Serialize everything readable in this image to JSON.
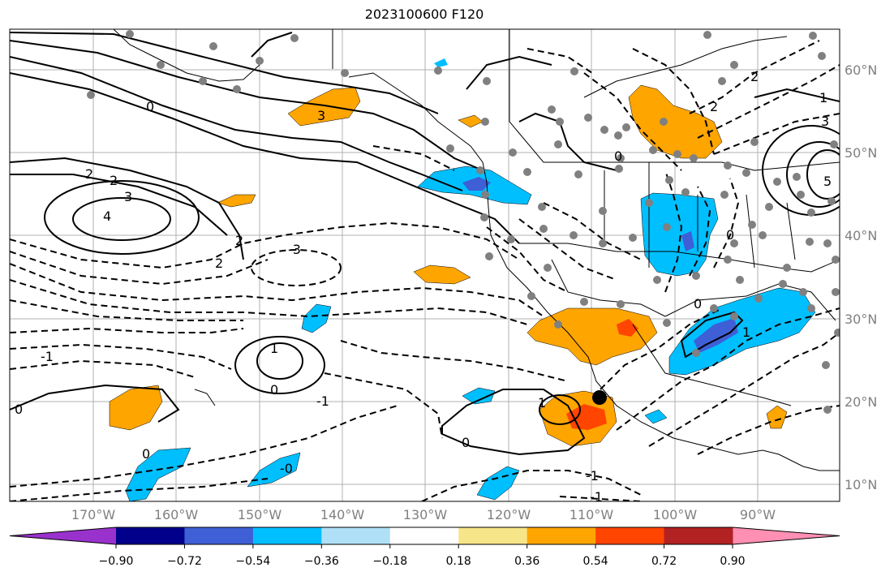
{
  "title": "2023100600 F120",
  "map": {
    "longitude_labels": [
      "170°W",
      "160°W",
      "150°W",
      "140°W",
      "130°W",
      "120°W",
      "110°W",
      "100°W",
      "90°W"
    ],
    "latitude_labels": [
      "60°N",
      "50°N",
      "40°N",
      "30°N",
      "20°N",
      "10°N"
    ],
    "contour_labels": [
      "2",
      "2",
      "3",
      "4",
      "3",
      "2",
      "2",
      "-3",
      "-1",
      "1",
      "0",
      "0",
      "-1",
      "0",
      "0",
      "1",
      "0",
      "-1",
      "0",
      "-0",
      "1",
      "0",
      "-1",
      "0",
      "2",
      "2",
      "3",
      "5",
      "1"
    ],
    "marker": "storm-center-dot"
  },
  "colorbar": {
    "tick_labels": [
      "−0.90",
      "−0.72",
      "−0.54",
      "−0.36",
      "−0.18",
      "0.18",
      "0.36",
      "0.54",
      "0.72",
      "0.90"
    ],
    "colors": [
      "#9932cc",
      "#00008b",
      "#3f5fd6",
      "#00bfff",
      "#b0e0f8",
      "#ffffff",
      "#f7e58a",
      "#ffa500",
      "#ff4500",
      "#b22222",
      "#ff8fb3"
    ],
    "extend_low_color": "#9932cc",
    "extend_high_color": "#ff8fb3"
  },
  "chart_data": {
    "type": "heatmap",
    "title": "2023100600 F120",
    "levels": [
      -0.9,
      -0.72,
      -0.54,
      -0.36,
      -0.18,
      0.18,
      0.36,
      0.54,
      0.72,
      0.9
    ],
    "lon_range": [
      "180°W",
      "80°W"
    ],
    "lat_range": [
      "8°N",
      "65°N"
    ]
  }
}
